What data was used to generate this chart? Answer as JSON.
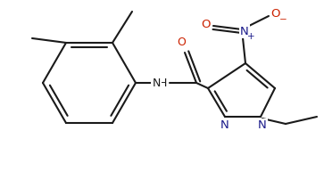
{
  "bg_color": "#ffffff",
  "line_color": "#1a1a1a",
  "bond_lw": 1.5,
  "N_color": "#1a1a8a",
  "O_color": "#cc2200",
  "font_size": 8.5,
  "figsize": [
    3.63,
    2.11
  ],
  "dpi": 100,
  "xlim": [
    0,
    363
  ],
  "ylim": [
    0,
    211
  ]
}
